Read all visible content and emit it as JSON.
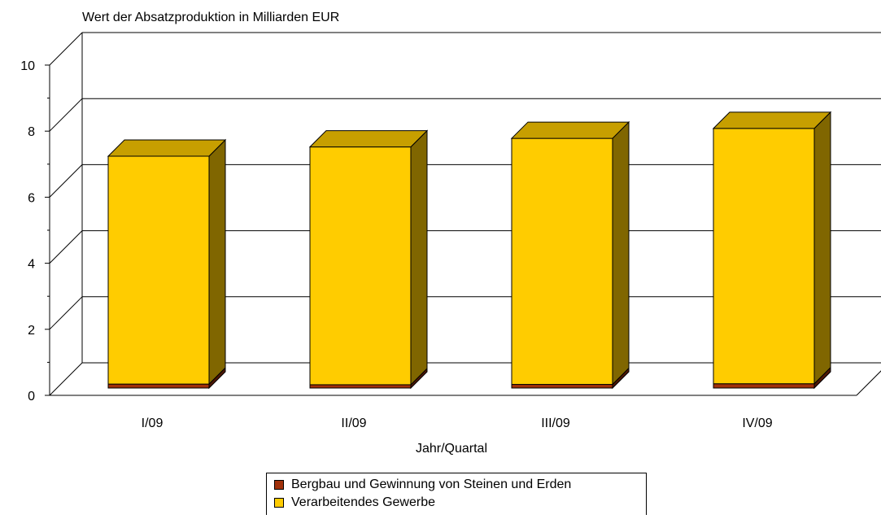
{
  "chart_data": {
    "type": "bar",
    "stacked": true,
    "three_d": true,
    "title": "Wert der Absatzproduktion in Milliarden EUR",
    "xlabel": "Jahr/Quartal",
    "ylabel": "",
    "categories": [
      "I/09",
      "II/09",
      "III/09",
      "IV/09"
    ],
    "ylim": [
      0,
      10
    ],
    "yticks": [
      "0",
      "2",
      "4",
      "6",
      "8",
      "10"
    ],
    "grid": true,
    "legend_position": "bottom",
    "series": [
      {
        "name": "Bergbau und Gewinnung von Steinen und Erden",
        "values": [
          0.12,
          0.1,
          0.11,
          0.13
        ],
        "color": "#a0300a"
      },
      {
        "name": "Verarbeitendes Gewerbe",
        "values": [
          6.9,
          7.2,
          7.45,
          7.73
        ],
        "color": "#ffcc00"
      }
    ]
  }
}
